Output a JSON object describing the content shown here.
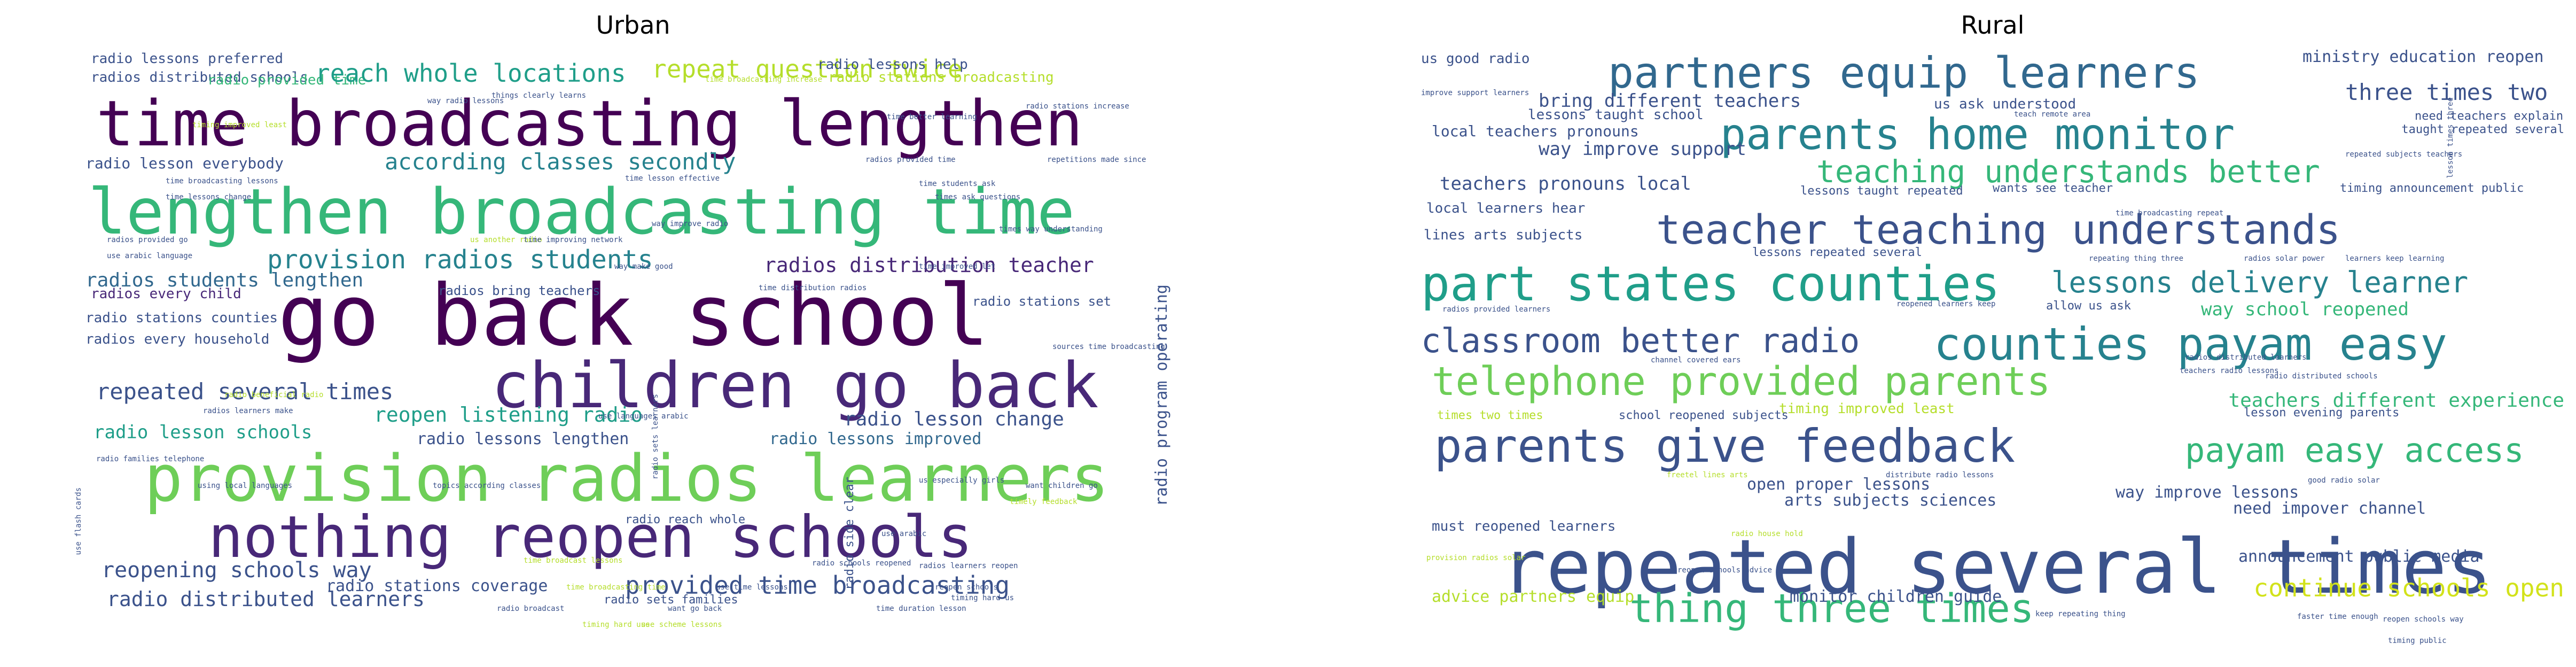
{
  "panels": [
    {
      "id": "urban",
      "title": "Urban",
      "words": [
        {
          "text": "radio lessons preferred",
          "color": "#3b528b"
        },
        {
          "text": "radios distributed schools",
          "color": "#3b528b"
        },
        {
          "text": "radio provided time",
          "color": "#35b779"
        },
        {
          "text": "reach whole locations",
          "color": "#1f9e89"
        },
        {
          "text": "repeat question twice",
          "color": "#b5de2b"
        },
        {
          "text": "radio lessons help",
          "color": "#3b528b"
        },
        {
          "text": "radio stations broadcasting",
          "color": "#b5de2b"
        },
        {
          "text": "time broadcasting lengthen",
          "color": "#440154"
        },
        {
          "text": "radio lesson everybody",
          "color": "#3b528b"
        },
        {
          "text": "according classes secondly",
          "color": "#26828e"
        },
        {
          "text": "lengthen broadcasting time",
          "color": "#35b779"
        },
        {
          "text": "provision radios students",
          "color": "#26828e"
        },
        {
          "text": "radios distribution teacher",
          "color": "#482878"
        },
        {
          "text": "radios students lengthen",
          "color": "#31688e"
        },
        {
          "text": "radios every child",
          "color": "#482878"
        },
        {
          "text": "radio stations counties",
          "color": "#3b528b"
        },
        {
          "text": "go back school",
          "color": "#440154"
        },
        {
          "text": "radios every household",
          "color": "#3b528b"
        },
        {
          "text": "children go back",
          "color": "#482878"
        },
        {
          "text": "repeated several times",
          "color": "#3b528b"
        },
        {
          "text": "reopen listening radio",
          "color": "#1f9e89"
        },
        {
          "text": "radio lesson change",
          "color": "#3b528b"
        },
        {
          "text": "radio lesson schools",
          "color": "#1f9e89"
        },
        {
          "text": "radio lessons lengthen",
          "color": "#3b528b"
        },
        {
          "text": "radio lessons improved",
          "color": "#31688e"
        },
        {
          "text": "provision radios learners",
          "color": "#6ece58"
        },
        {
          "text": "nothing reopen schools",
          "color": "#482878"
        },
        {
          "text": "reopening schools way",
          "color": "#3b528b"
        },
        {
          "text": "radio stations coverage",
          "color": "#3b528b"
        },
        {
          "text": "radio distributed learners",
          "color": "#3b528b"
        },
        {
          "text": "provided time broadcasting",
          "color": "#3b528b"
        },
        {
          "text": "radio program operating",
          "color": "#3b528b"
        },
        {
          "text": "radio side clear",
          "color": "#3b528b"
        },
        {
          "text": "radio reach whole",
          "color": "#3b528b"
        },
        {
          "text": "radio sets families",
          "color": "#3b528b"
        },
        {
          "text": "radios bring teachers",
          "color": "#3b528b"
        },
        {
          "text": "radio stations set",
          "color": "#3b528b"
        },
        {
          "text": "time broadcasting increase",
          "color": "#b5de2b"
        },
        {
          "text": "things clearly learns",
          "color": "#3b528b"
        },
        {
          "text": "radios provided time",
          "color": "#3b528b"
        },
        {
          "text": "repetitions made since",
          "color": "#3b528b"
        },
        {
          "text": "time lesson effective",
          "color": "#3b528b"
        },
        {
          "text": "time students ask",
          "color": "#3b528b"
        },
        {
          "text": "timing improved least",
          "color": "#b5de2b"
        },
        {
          "text": "way radio lessons",
          "color": "#3b528b"
        },
        {
          "text": "radio stations increase",
          "color": "#3b528b"
        },
        {
          "text": "time broadcasting lessons",
          "color": "#3b528b"
        },
        {
          "text": "time lessons change",
          "color": "#3b528b"
        },
        {
          "text": "times ask questions",
          "color": "#3b528b"
        },
        {
          "text": "times way understanding",
          "color": "#3b528b"
        },
        {
          "text": "way improve radio",
          "color": "#3b528b"
        },
        {
          "text": "radios provided go",
          "color": "#3b528b"
        },
        {
          "text": "use arabic language",
          "color": "#3b528b"
        },
        {
          "text": "time distribution radios",
          "color": "#3b528b"
        },
        {
          "text": "use languages arabic",
          "color": "#3b528b"
        },
        {
          "text": "radio beneficial radio",
          "color": "#b5de2b"
        },
        {
          "text": "radios learners make",
          "color": "#3b528b"
        },
        {
          "text": "radio families telephone",
          "color": "#3b528b"
        },
        {
          "text": "using local languages",
          "color": "#3b528b"
        },
        {
          "text": "topics according classes",
          "color": "#3b528b"
        },
        {
          "text": "time broadcast lessons",
          "color": "#b5de2b"
        },
        {
          "text": "timing hard use",
          "color": "#b5de2b"
        },
        {
          "text": "want go back",
          "color": "#3b528b"
        },
        {
          "text": "time duration lesson",
          "color": "#3b528b"
        },
        {
          "text": "timing hard us",
          "color": "#3b528b"
        },
        {
          "text": "use flash cards",
          "color": "#3b528b"
        },
        {
          "text": "radio sets learners",
          "color": "#3b528b"
        },
        {
          "text": "us especially girls",
          "color": "#3b528b"
        },
        {
          "text": "want children go",
          "color": "#3b528b"
        },
        {
          "text": "sources time broadcasting",
          "color": "#3b528b"
        },
        {
          "text": "us another radio",
          "color": "#b5de2b"
        },
        {
          "text": "time improving network",
          "color": "#3b528b"
        },
        {
          "text": "way make good",
          "color": "#3b528b"
        },
        {
          "text": "time improved let",
          "color": "#3b528b"
        },
        {
          "text": "radio schools reopened",
          "color": "#3b528b"
        },
        {
          "text": "use arabic",
          "color": "#3b528b"
        },
        {
          "text": "timely feedback",
          "color": "#b5de2b"
        },
        {
          "text": "time better learning",
          "color": "#3b528b"
        },
        {
          "text": "radios learners reopen",
          "color": "#3b528b"
        },
        {
          "text": "radio broadcast",
          "color": "#3b528b"
        },
        {
          "text": "use scheme lessons",
          "color": "#b5de2b"
        },
        {
          "text": "time broadcasting time",
          "color": "#b5de2b"
        },
        {
          "text": "use time lessons",
          "color": "#3b528b"
        },
        {
          "text": "reopen schools",
          "color": "#3b528b"
        }
      ]
    },
    {
      "id": "rural",
      "title": "Rural",
      "words": [
        {
          "text": "us good radio",
          "color": "#3b528b"
        },
        {
          "text": "partners equip learners",
          "color": "#31688e"
        },
        {
          "text": "ministry education reopen",
          "color": "#3b528b"
        },
        {
          "text": "three times two",
          "color": "#3b528b"
        },
        {
          "text": "need teachers explain",
          "color": "#3b528b"
        },
        {
          "text": "bring different teachers",
          "color": "#3b528b"
        },
        {
          "text": "us ask understood",
          "color": "#3b528b"
        },
        {
          "text": "lessons taught school",
          "color": "#3b528b"
        },
        {
          "text": "parents home monitor",
          "color": "#26828e"
        },
        {
          "text": "taught repeated several",
          "color": "#3b528b"
        },
        {
          "text": "local teachers pronouns",
          "color": "#3b528b"
        },
        {
          "text": "way improve support",
          "color": "#3b528b"
        },
        {
          "text": "teaching understands better",
          "color": "#35b779"
        },
        {
          "text": "teachers pronouns local",
          "color": "#3b528b"
        },
        {
          "text": "lessons taught repeated",
          "color": "#3b528b"
        },
        {
          "text": "wants see teacher",
          "color": "#3b528b"
        },
        {
          "text": "timing announcement public",
          "color": "#3b528b"
        },
        {
          "text": "local learners hear",
          "color": "#3b528b"
        },
        {
          "text": "teacher teaching understands",
          "color": "#3b528b"
        },
        {
          "text": "lines arts subjects",
          "color": "#3b528b"
        },
        {
          "text": "lessons repeated several",
          "color": "#3b528b"
        },
        {
          "text": "part states counties",
          "color": "#1f9e89"
        },
        {
          "text": "lessons delivery learner",
          "color": "#26828e"
        },
        {
          "text": "allow us ask",
          "color": "#3b528b"
        },
        {
          "text": "way school reopened",
          "color": "#35b779"
        },
        {
          "text": "classroom better radio",
          "color": "#3b528b"
        },
        {
          "text": "counties payam easy",
          "color": "#26828e"
        },
        {
          "text": "telephone provided parents",
          "color": "#6ece58"
        },
        {
          "text": "teachers different experience",
          "color": "#35b779"
        },
        {
          "text": "parents give feedback",
          "color": "#3b528b"
        },
        {
          "text": "payam easy access",
          "color": "#35b779"
        },
        {
          "text": "open proper lessons",
          "color": "#3b528b"
        },
        {
          "text": "arts subjects sciences",
          "color": "#3b528b"
        },
        {
          "text": "way improve lessons",
          "color": "#3b528b"
        },
        {
          "text": "need impover channel",
          "color": "#3b528b"
        },
        {
          "text": "must reopened learners",
          "color": "#3b528b"
        },
        {
          "text": "repeated several times",
          "color": "#3b528b"
        },
        {
          "text": "thing three times",
          "color": "#35b779"
        },
        {
          "text": "announcement public media",
          "color": "#3b528b"
        },
        {
          "text": "continue schools open",
          "color": "#d2e21b"
        },
        {
          "text": "advice partners equip",
          "color": "#b5de2b"
        },
        {
          "text": "monitor children guide",
          "color": "#3b528b"
        },
        {
          "text": "timing improved least",
          "color": "#b5de2b"
        },
        {
          "text": "times two times",
          "color": "#b5de2b"
        },
        {
          "text": "school reopened subjects",
          "color": "#3b528b"
        },
        {
          "text": "lesson evening parents",
          "color": "#3b528b"
        },
        {
          "text": "improve support learners",
          "color": "#3b528b"
        },
        {
          "text": "teach remote area",
          "color": "#3b528b"
        },
        {
          "text": "repeated subjects teachers",
          "color": "#3b528b"
        },
        {
          "text": "repeating thing three",
          "color": "#3b528b"
        },
        {
          "text": "radios solar power",
          "color": "#3b528b"
        },
        {
          "text": "learners keep learning",
          "color": "#3b528b"
        },
        {
          "text": "radios provided learners",
          "color": "#3b528b"
        },
        {
          "text": "reopened learners keep",
          "color": "#3b528b"
        },
        {
          "text": "channel covered ears",
          "color": "#3b528b"
        },
        {
          "text": "radio distributed schools",
          "color": "#3b528b"
        },
        {
          "text": "teachers radio lessons",
          "color": "#3b528b"
        },
        {
          "text": "freetel lines arts",
          "color": "#b5de2b"
        },
        {
          "text": "distribute radio lessons",
          "color": "#3b528b"
        },
        {
          "text": "radio house hold",
          "color": "#b5de2b"
        },
        {
          "text": "good radio solar",
          "color": "#3b528b"
        },
        {
          "text": "keep repeating thing",
          "color": "#3b528b"
        },
        {
          "text": "faster time enough",
          "color": "#3b528b"
        },
        {
          "text": "reopen schools way",
          "color": "#3b528b"
        },
        {
          "text": "provision radios solar",
          "color": "#b5de2b"
        },
        {
          "text": "reopen schools advice",
          "color": "#3b528b"
        },
        {
          "text": "radios distributed learners",
          "color": "#3b528b"
        },
        {
          "text": "time broadcasting repeat",
          "color": "#3b528b"
        },
        {
          "text": "lesson times three",
          "color": "#3b528b"
        },
        {
          "text": "timing public",
          "color": "#3b528b"
        }
      ]
    }
  ]
}
